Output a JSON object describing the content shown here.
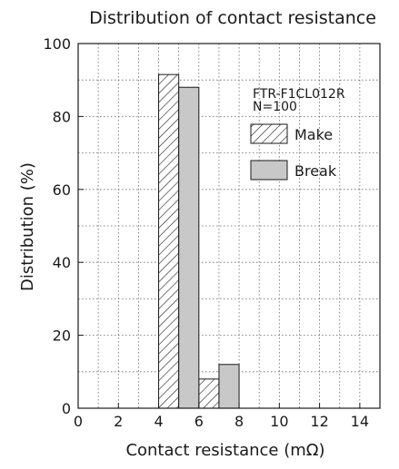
{
  "chart_data": {
    "type": "bar",
    "title": "Distribution of contact resistance",
    "xlabel": "Contact resistance (mΩ)",
    "ylabel": "Distribution (%)",
    "xlim": [
      0,
      15
    ],
    "ylim": [
      0,
      100
    ],
    "xticks": [
      "0",
      "2",
      "4",
      "6",
      "8",
      "10",
      "12",
      "14"
    ],
    "yticks": [
      "0",
      "20",
      "40",
      "60",
      "80",
      "100"
    ],
    "grid": true,
    "annotation": [
      "FTR-F1CL012R",
      "N=100"
    ],
    "legend_position": "top-right",
    "series": [
      {
        "name": "Make",
        "pattern": "hatched",
        "fill": "#ffffff",
        "bins": [
          {
            "x_start": 4,
            "x_end": 5,
            "value": 91.5
          },
          {
            "x_start": 6,
            "x_end": 7,
            "value": 8
          }
        ]
      },
      {
        "name": "Break",
        "pattern": "solid",
        "fill": "#c8c8c8",
        "bins": [
          {
            "x_start": 5,
            "x_end": 6,
            "value": 88
          },
          {
            "x_start": 7,
            "x_end": 8,
            "value": 12
          }
        ]
      }
    ]
  }
}
